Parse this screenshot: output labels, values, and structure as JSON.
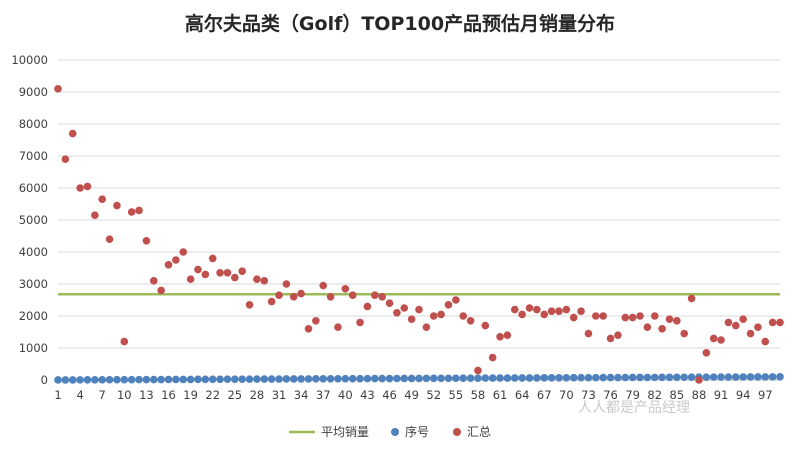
{
  "chart_data": {
    "type": "scatter",
    "title": "高尔夫品类（Golf）TOP100产品预估月销量分布",
    "xlabel": "",
    "ylabel": "",
    "ylim": [
      0,
      10000
    ],
    "xlim": [
      1,
      99
    ],
    "y_ticks": [
      "0",
      "1000",
      "2000",
      "3000",
      "4000",
      "5000",
      "6000",
      "7000",
      "8000",
      "9000",
      "10000"
    ],
    "x_ticks": [
      "1",
      "4",
      "7",
      "10",
      "13",
      "16",
      "19",
      "22",
      "25",
      "28",
      "31",
      "34",
      "37",
      "40",
      "43",
      "46",
      "49",
      "52",
      "55",
      "58",
      "61",
      "64",
      "67",
      "70",
      "73",
      "76",
      "79",
      "82",
      "85",
      "88",
      "91",
      "94",
      "97"
    ],
    "grid": true,
    "legend_position": "bottom",
    "series": [
      {
        "name": "平均销量",
        "kind": "line",
        "color": "#9bbb59",
        "value": 2680
      },
      {
        "name": "序号",
        "kind": "scatter",
        "color": "#4f81bd",
        "x": [
          1,
          2,
          3,
          4,
          5,
          6,
          7,
          8,
          9,
          10,
          11,
          12,
          13,
          14,
          15,
          16,
          17,
          18,
          19,
          20,
          21,
          22,
          23,
          24,
          25,
          26,
          27,
          28,
          29,
          30,
          31,
          32,
          33,
          34,
          35,
          36,
          37,
          38,
          39,
          40,
          41,
          42,
          43,
          44,
          45,
          46,
          47,
          48,
          49,
          50,
          51,
          52,
          53,
          54,
          55,
          56,
          57,
          58,
          59,
          60,
          61,
          62,
          63,
          64,
          65,
          66,
          67,
          68,
          69,
          70,
          71,
          72,
          73,
          74,
          75,
          76,
          77,
          78,
          79,
          80,
          81,
          82,
          83,
          84,
          85,
          86,
          87,
          88,
          89,
          90,
          91,
          92,
          93,
          94,
          95,
          96,
          97,
          98,
          99
        ],
        "y": [
          1,
          2,
          3,
          4,
          5,
          6,
          7,
          8,
          9,
          10,
          11,
          12,
          13,
          14,
          15,
          16,
          17,
          18,
          19,
          20,
          21,
          22,
          23,
          24,
          25,
          26,
          27,
          28,
          29,
          30,
          31,
          32,
          33,
          34,
          35,
          36,
          37,
          38,
          39,
          40,
          41,
          42,
          43,
          44,
          45,
          46,
          47,
          48,
          49,
          50,
          51,
          52,
          53,
          54,
          55,
          56,
          57,
          58,
          59,
          60,
          61,
          62,
          63,
          64,
          65,
          66,
          67,
          68,
          69,
          70,
          71,
          72,
          73,
          74,
          75,
          76,
          77,
          78,
          79,
          80,
          81,
          82,
          83,
          84,
          85,
          86,
          87,
          88,
          89,
          90,
          91,
          92,
          93,
          94,
          95,
          96,
          97,
          98,
          99
        ]
      },
      {
        "name": "汇总",
        "kind": "scatter",
        "color": "#c0504d",
        "x": [
          1,
          2,
          3,
          4,
          5,
          6,
          7,
          8,
          9,
          10,
          11,
          12,
          13,
          14,
          15,
          16,
          17,
          18,
          19,
          20,
          21,
          22,
          23,
          24,
          25,
          26,
          27,
          28,
          29,
          30,
          31,
          32,
          33,
          34,
          35,
          36,
          37,
          38,
          39,
          40,
          41,
          42,
          43,
          44,
          45,
          46,
          47,
          48,
          49,
          50,
          51,
          52,
          53,
          54,
          55,
          56,
          57,
          58,
          59,
          60,
          61,
          62,
          63,
          64,
          65,
          66,
          67,
          68,
          69,
          70,
          71,
          72,
          73,
          74,
          75,
          76,
          77,
          78,
          79,
          80,
          81,
          82,
          83,
          84,
          85,
          86,
          87,
          88,
          89,
          90,
          91,
          92,
          93,
          94,
          95,
          96,
          97,
          98,
          99
        ],
        "y": [
          9100,
          6900,
          7700,
          6000,
          6050,
          5150,
          5650,
          4400,
          5450,
          1200,
          5250,
          5300,
          4350,
          3100,
          2800,
          3600,
          3750,
          4000,
          3150,
          3450,
          3300,
          3800,
          3350,
          3350,
          3200,
          3400,
          2350,
          3150,
          3100,
          2450,
          2650,
          3000,
          2600,
          2700,
          1600,
          1850,
          2950,
          2600,
          1650,
          2850,
          2650,
          1800,
          2300,
          2650,
          2600,
          2400,
          2100,
          2250,
          1900,
          2200,
          1650,
          2000,
          2050,
          2350,
          2500,
          2000,
          1850,
          300,
          1700,
          700,
          1350,
          1400,
          2200,
          2050,
          2250,
          2200,
          2050,
          2150,
          2150,
          2200,
          1950,
          2150,
          1450,
          2000,
          2000,
          1300,
          1400,
          1950,
          1950,
          2000,
          1650,
          2000,
          1600,
          1900,
          1850,
          1450,
          2550,
          0,
          850,
          1300,
          1250,
          1800,
          1700,
          1900,
          1450,
          1650,
          1200,
          1800,
          1800
        ]
      }
    ]
  },
  "watermark": "人人都是产品经理"
}
